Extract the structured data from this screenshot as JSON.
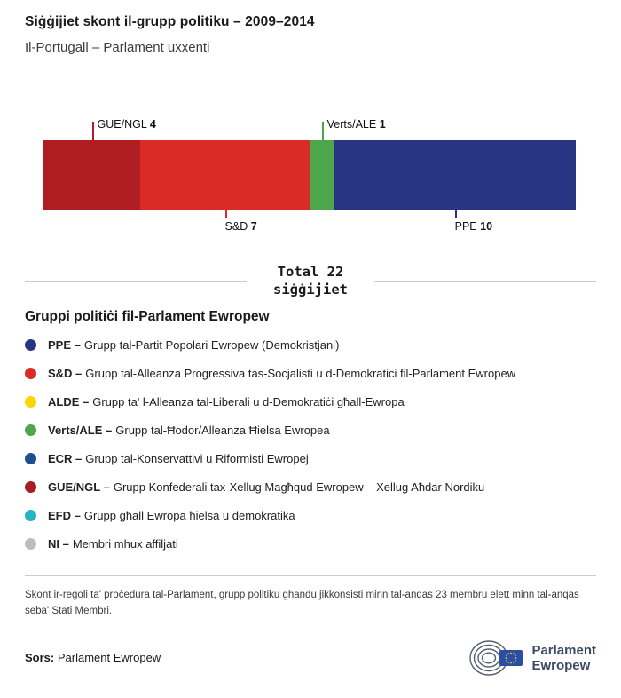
{
  "header": {
    "title": "Siġġijiet skont il-grupp politiku – 2009–2014",
    "subtitle": "Il-Portugall – Parlament uxxenti"
  },
  "chart_data": {
    "type": "bar",
    "subtype": "stacked-horizontal",
    "title": "Siġġijiet skont il-grupp politiku – 2009–2014",
    "subtitle": "Il-Portugall – Parlament uxxenti",
    "total": 22,
    "segments": [
      {
        "name": "GUE/NGL",
        "value": 4,
        "color": "#b01e24",
        "label_position": "top"
      },
      {
        "name": "S&D",
        "value": 7,
        "color": "#db2b27",
        "label_position": "bottom"
      },
      {
        "name": "Verts/ALE",
        "value": 1,
        "color": "#4da74a",
        "label_position": "top"
      },
      {
        "name": "PPE",
        "value": 10,
        "color": "#283583",
        "label_position": "bottom"
      }
    ]
  },
  "total": {
    "line1": "Total 22",
    "line2": "siġġijiet"
  },
  "legend": {
    "heading": "Gruppi politiċi fil-Parlament Ewropew",
    "items": [
      {
        "abbr": "PPE –",
        "desc": "Grupp tal-Partit Popolari Ewropew (Demokristjani)",
        "color": "#283583"
      },
      {
        "abbr": "S&D –",
        "desc": "Grupp tal-Alleanza Progressiva tas-Socjalisti u d-Demokratici fil-Parlament Ewropew",
        "color": "#db2b27"
      },
      {
        "abbr": "ALDE –",
        "desc": "Grupp ta' l-Alleanza tal-Liberali u d-Demokratiċi għall-Ewropa",
        "color": "#ffd500"
      },
      {
        "abbr": "Verts/ALE –",
        "desc": "Grupp tal-Ħodor/Alleanza Ħielsa Ewropea",
        "color": "#4da74a"
      },
      {
        "abbr": "ECR –",
        "desc": "Grupp tal-Konservattivi u Riformisti Ewropej",
        "color": "#1d4f91"
      },
      {
        "abbr": "GUE/NGL –",
        "desc": "Grupp Konfederali tax-Xellug Magħqud Ewropew – Xellug Aħdar Nordiku",
        "color": "#a81c22"
      },
      {
        "abbr": "EFD –",
        "desc": "Grupp għall Ewropa ħielsa u demokratika",
        "color": "#26b4c4"
      },
      {
        "abbr": "NI –",
        "desc": "Membri mhux affiljati",
        "color": "#bdbdbd"
      }
    ]
  },
  "footer": {
    "note": "Skont ir-regoli ta' proċedura tal-Parlament, grupp politiku għandu jikkonsisti minn tal-anqas 23 membru elett minn tal-anqas seba' Stati Membri.",
    "source_label": "Sors:",
    "source": "Parlament Ewropew",
    "logo": {
      "line1": "Parlament",
      "line2": "Ewropew",
      "text_color": "#3c4b64",
      "arc_color": "#55606e",
      "flag_color": "#2b4ea2",
      "star_color": "#ffd617"
    }
  }
}
